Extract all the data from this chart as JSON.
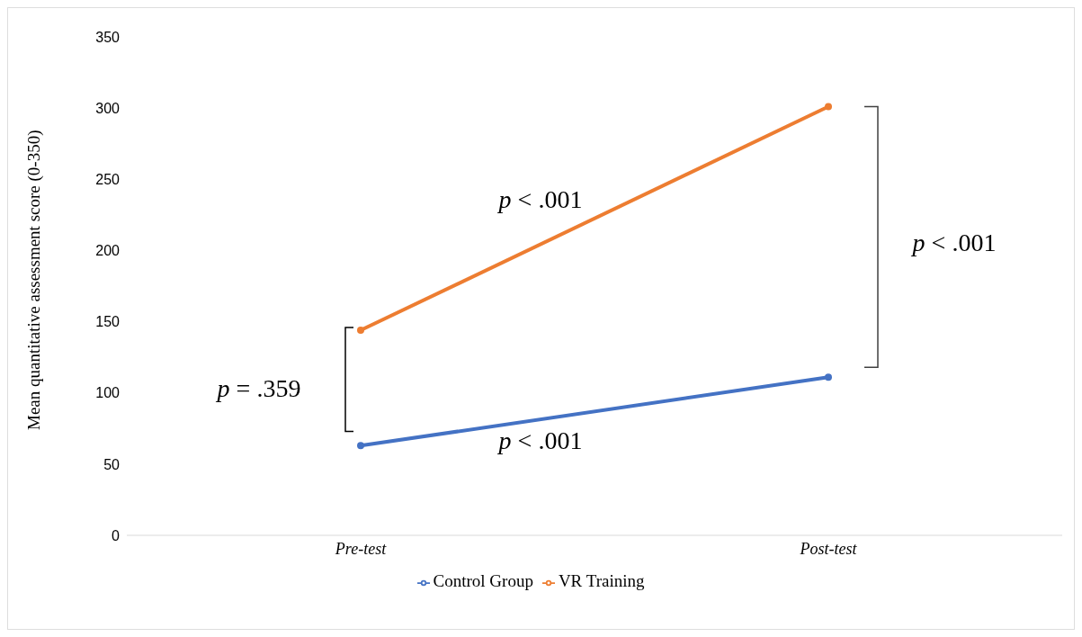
{
  "chart_data": {
    "type": "line",
    "ylabel": "Mean quantitative assessment score (0-350)",
    "categories": [
      "Pre-test",
      "Post-test"
    ],
    "series": [
      {
        "name": "Control Group",
        "color": "#4472c4",
        "values": [
          63,
          111
        ]
      },
      {
        "name": "VR Training",
        "color": "#ed7d31",
        "values": [
          144,
          301
        ]
      }
    ],
    "ylim": [
      0,
      350
    ],
    "yticks": [
      0,
      50,
      100,
      150,
      200,
      250,
      300,
      350
    ],
    "grid": false,
    "legend": "bottom",
    "marker": "circle",
    "line_style": "solid",
    "annotations": [
      "p < .001",
      "p < .001",
      "p = .359",
      "p < .001"
    ]
  }
}
